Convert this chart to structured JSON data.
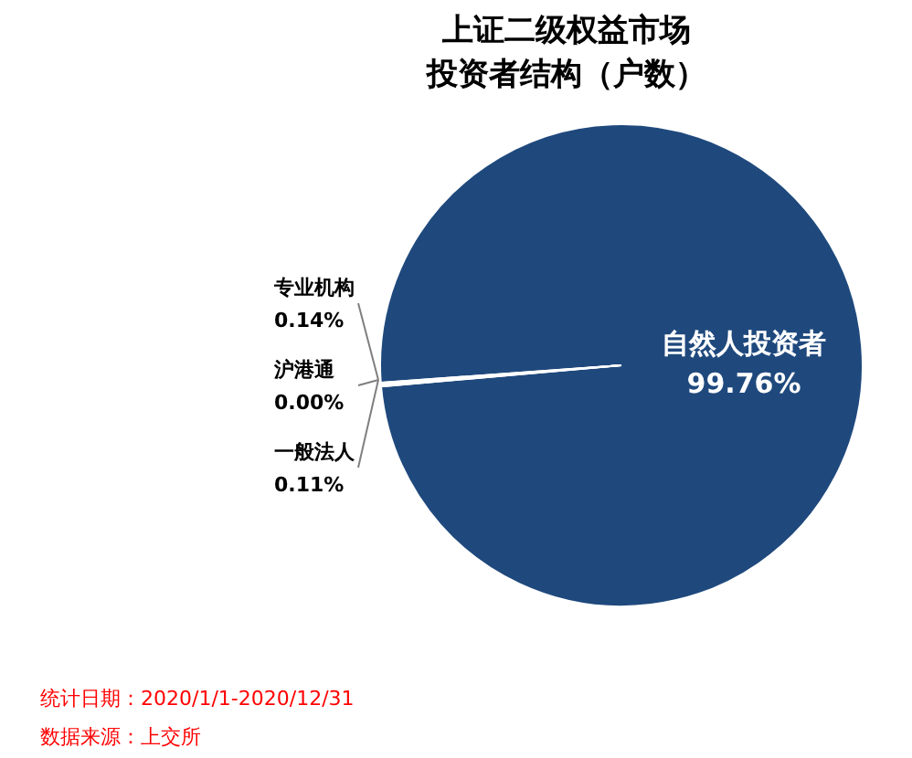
{
  "chart_data": {
    "type": "pie",
    "title": [
      "上证二级权益市场",
      "投资者结构（户数）"
    ],
    "categories": [
      "自然人投资者",
      "专业机构",
      "沪港通",
      "一般法人"
    ],
    "values": [
      99.76,
      0.14,
      0.0,
      0.11
    ],
    "colors": [
      "#1f497d",
      "#f2f2f2",
      "#f2f2f2",
      "#f2f2f2"
    ],
    "value_labels": [
      "99.76%",
      "0.14%",
      "0.00%",
      "0.11%"
    ],
    "annotations": [
      "统计日期：2020/1/1-2020/12/31",
      "数据来源：上交所"
    ]
  }
}
